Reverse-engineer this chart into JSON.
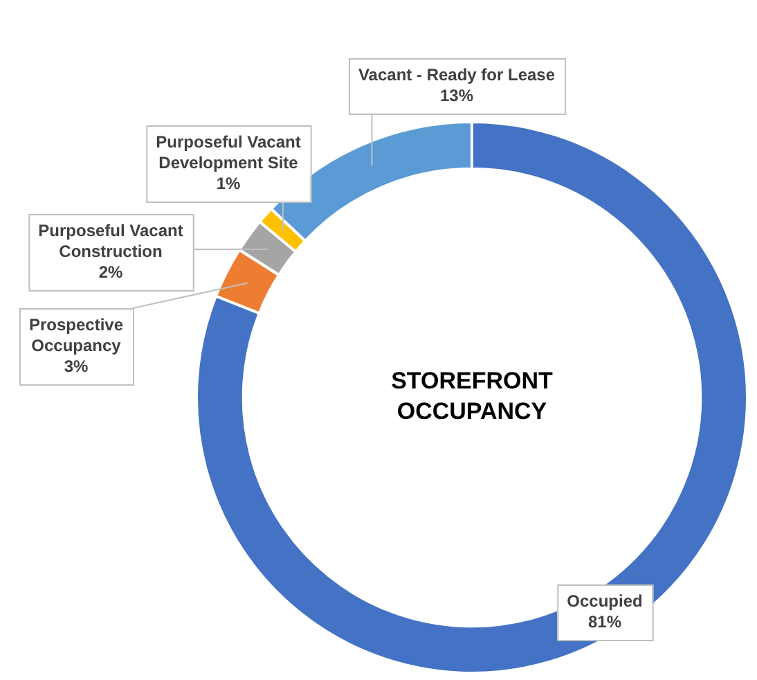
{
  "chart_data": {
    "type": "donut",
    "title": "STOREFRONT OCCUPANCY",
    "categories": [
      "Occupied",
      "Prospective Occupancy",
      "Purposeful Vacant Construction",
      "Purposeful Vacant Development Site",
      "Vacant - Ready for Lease"
    ],
    "values": [
      81,
      3,
      2,
      1,
      13
    ],
    "colors": [
      "#4472c4",
      "#ed7d31",
      "#a5a5a5",
      "#ffc000",
      "#5b9bd5"
    ],
    "value_labels": [
      "81%",
      "3%",
      "2%",
      "1%",
      "13%"
    ],
    "legend": false
  }
}
